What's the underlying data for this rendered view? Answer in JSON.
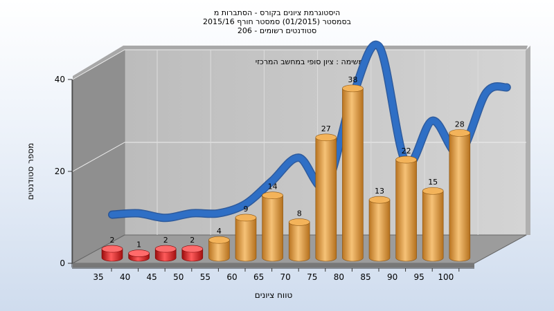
{
  "chart_data": {
    "type": "bar",
    "title_lines": [
      "היסטוגרמת ציונים בקורס - הסתברות מ",
      "בסמסטר  (01/2015)  סמסטר חורף  2015/16",
      "סטודנטים רשומים - 206"
    ],
    "annotation": "במשימה : ציון סופי במחשב המרכזי",
    "xlabel": "טווח ציונים",
    "ylabel": "מספר סטודנטים",
    "categories": [
      "35",
      "40",
      "45",
      "50",
      "55",
      "60",
      "65",
      "70",
      "75",
      "80",
      "85",
      "90",
      "95",
      "100"
    ],
    "values": [
      2,
      1,
      2,
      2,
      4,
      9,
      14,
      8,
      27,
      38,
      13,
      22,
      15,
      28
    ],
    "ylim": [
      0,
      40
    ],
    "yticks": [
      0,
      20,
      40
    ],
    "grid": true,
    "colors": {
      "fail_bar": "#d21f1f",
      "pass_bar": "#e8a33f",
      "curve": "#2f6fc5",
      "wall": "#c8c8c8",
      "floor": "#9a9a9a"
    }
  }
}
